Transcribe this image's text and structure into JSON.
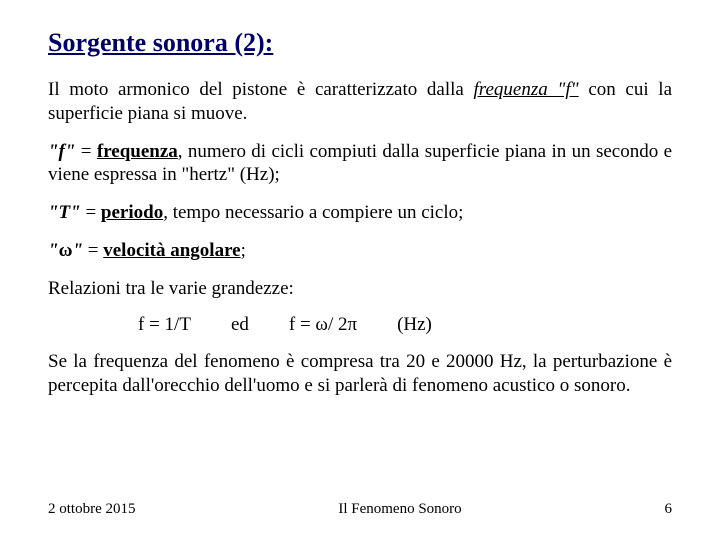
{
  "title": "Sorgente sonora (2):",
  "p1_a": "Il moto armonico del pistone è caratterizzato dalla ",
  "p1_b": "frequenza \"f\"",
  "p1_c": " con cui la superficie piana si muove.",
  "p2_a": "\"f\"",
  "p2_b": " = ",
  "p2_c": "frequenza",
  "p2_d": ", numero di cicli compiuti dalla superficie piana in un secondo e viene espressa in \"hertz\" (Hz);",
  "p3_a": "\"T\"",
  "p3_b": " = ",
  "p3_c": "periodo",
  "p3_d": ", tempo necessario a compiere un ciclo;",
  "p4_a": "\"",
  "p4_omega": "ω",
  "p4_a2": "\"",
  "p4_b": " = ",
  "p4_c": "velocità  angolare",
  "p4_d": ";",
  "p5": "Relazioni tra le varie grandezze:",
  "f1": "f = 1/T",
  "f_ed": "ed",
  "f2a": "f =  ",
  "f2_omega": "ω",
  "f2b": "/ 2",
  "f2_pi": "π",
  "f_hz": "(Hz)",
  "p6": "Se la frequenza del fenomeno è compresa  tra 20 e 20000 Hz, la perturbazione è percepita dall'orecchio dell'uomo e si parlerà di fenomeno acustico o sonoro.",
  "footer_date": "2 ottobre 2015",
  "footer_title": "Il Fenomeno Sonoro",
  "footer_page": "6"
}
